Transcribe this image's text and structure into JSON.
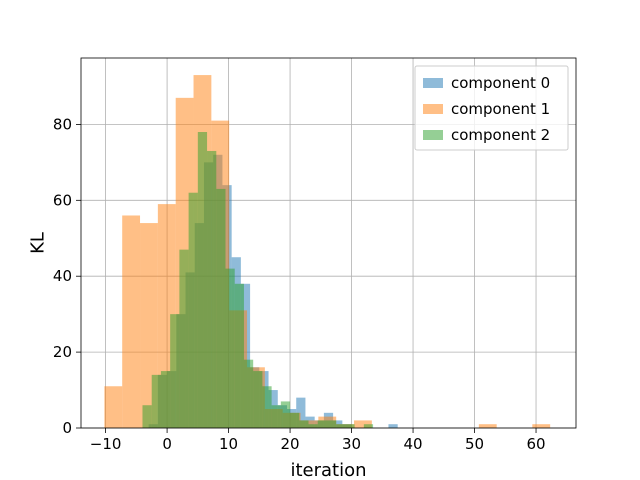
{
  "chart_data": {
    "type": "histogram",
    "xlabel": "iteration",
    "ylabel": "KL",
    "xlim": [
      -14,
      66.5
    ],
    "ylim": [
      0,
      97.5
    ],
    "xticks": [
      -10,
      0,
      10,
      20,
      30,
      40,
      50,
      60
    ],
    "yticks": [
      0,
      20,
      40,
      60,
      80
    ],
    "grid": true,
    "legend_position": "top-right",
    "series": [
      {
        "name": "component 0",
        "color": "#1f77b4",
        "alpha": 0.5,
        "bins": [
          [
            -3.0,
            -1.5,
            1
          ],
          [
            -1.5,
            0.0,
            14
          ],
          [
            0.0,
            1.5,
            15
          ],
          [
            1.5,
            3.0,
            30
          ],
          [
            3.0,
            4.5,
            41
          ],
          [
            4.5,
            6.0,
            54
          ],
          [
            6.0,
            7.5,
            70
          ],
          [
            7.5,
            9.0,
            72
          ],
          [
            9.0,
            10.5,
            64
          ],
          [
            10.5,
            12.0,
            45
          ],
          [
            12.0,
            13.5,
            38
          ],
          [
            13.5,
            15.0,
            16
          ],
          [
            15.0,
            16.5,
            15
          ],
          [
            16.5,
            18.0,
            10
          ],
          [
            18.0,
            19.5,
            6
          ],
          [
            19.5,
            21.0,
            5
          ],
          [
            21.0,
            22.5,
            8
          ],
          [
            22.5,
            24.0,
            3
          ],
          [
            24.0,
            25.5,
            2
          ],
          [
            25.5,
            27.0,
            4
          ],
          [
            27.0,
            28.5,
            2
          ],
          [
            28.5,
            30.0,
            1
          ],
          [
            36.0,
            37.5,
            1
          ]
        ]
      },
      {
        "name": "component 1",
        "color": "#ff7f0e",
        "alpha": 0.5,
        "bins": [
          [
            -10.2,
            -7.3,
            11
          ],
          [
            -7.3,
            -4.4,
            56
          ],
          [
            -4.4,
            -1.5,
            54
          ],
          [
            -1.5,
            1.4,
            59
          ],
          [
            1.4,
            4.3,
            87
          ],
          [
            4.3,
            7.2,
            93
          ],
          [
            7.2,
            10.1,
            81
          ],
          [
            10.1,
            13.0,
            31
          ],
          [
            13.0,
            15.9,
            16
          ],
          [
            15.9,
            18.8,
            5
          ],
          [
            18.8,
            21.7,
            4
          ],
          [
            21.7,
            24.6,
            2
          ],
          [
            24.6,
            27.5,
            3
          ],
          [
            27.5,
            30.4,
            1
          ],
          [
            30.4,
            33.3,
            2
          ],
          [
            50.7,
            53.6,
            1
          ],
          [
            59.4,
            62.3,
            1
          ]
        ]
      },
      {
        "name": "component 2",
        "color": "#2ca02c",
        "alpha": 0.5,
        "bins": [
          [
            -4.0,
            -2.5,
            6
          ],
          [
            -2.5,
            -1.0,
            14
          ],
          [
            -1.0,
            0.5,
            15
          ],
          [
            0.5,
            2.0,
            30
          ],
          [
            2.0,
            3.5,
            47
          ],
          [
            3.5,
            5.0,
            62
          ],
          [
            5.0,
            6.5,
            78
          ],
          [
            6.5,
            8.0,
            73
          ],
          [
            8.0,
            9.5,
            63
          ],
          [
            9.5,
            11.0,
            42
          ],
          [
            11.0,
            12.5,
            38
          ],
          [
            12.5,
            14.0,
            18
          ],
          [
            14.0,
            15.5,
            15
          ],
          [
            15.5,
            17.0,
            11
          ],
          [
            17.0,
            18.5,
            6
          ],
          [
            18.5,
            20.0,
            7
          ],
          [
            20.0,
            21.5,
            4
          ],
          [
            21.5,
            23.0,
            2
          ],
          [
            23.0,
            24.5,
            1
          ],
          [
            24.5,
            26.0,
            2
          ],
          [
            26.0,
            27.5,
            2
          ],
          [
            27.5,
            29.0,
            1
          ],
          [
            29.0,
            30.5,
            1
          ],
          [
            32.0,
            33.5,
            1
          ]
        ]
      }
    ]
  }
}
